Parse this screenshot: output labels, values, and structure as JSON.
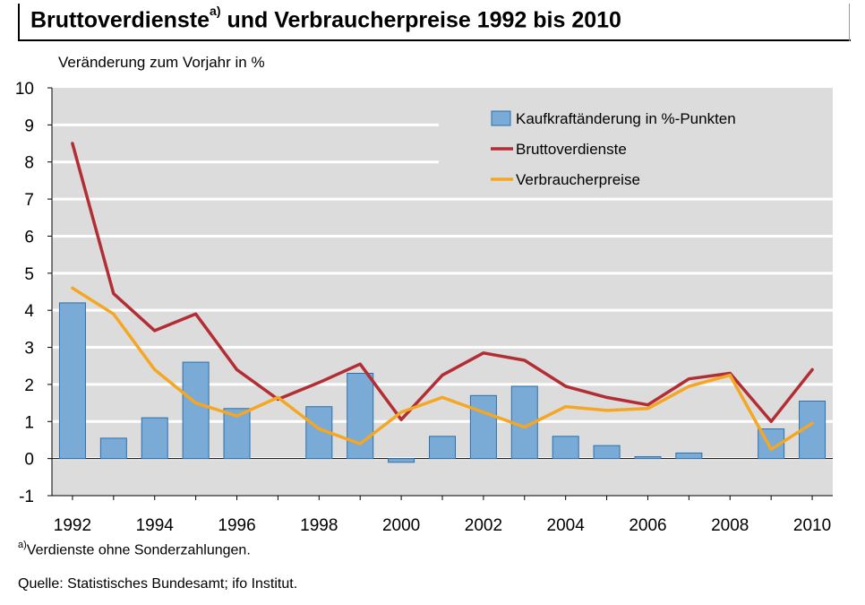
{
  "title": {
    "main": "Bruttoverdienste",
    "sup": "a)",
    "rest": " und Verbraucherpreise 1992 bis 2010"
  },
  "unit_label": "Veränderung zum Vorjahr in %",
  "footnote": {
    "marker": "a)",
    "text": "Verdienste ohne Sonderzahlungen."
  },
  "source": "Quelle: Statistisches Bundesamt; ifo Institut.",
  "colors": {
    "plot_background": "#dcdcdc",
    "gridline": "#ffffff",
    "bar_fill": "#7aabd6",
    "bar_stroke": "#2a6fad",
    "brutto": "#b32d35",
    "verbraucher": "#f5a623"
  },
  "chart_data": {
    "type": "bar",
    "title": "Bruttoverdienste a) und Verbraucherpreise 1992 bis 2010",
    "ylabel": "Veränderung zum Vorjahr in %",
    "xlabel": "",
    "ylim": [
      -1,
      10
    ],
    "yticks": [
      -1,
      0,
      1,
      2,
      3,
      4,
      5,
      6,
      7,
      8,
      9,
      10
    ],
    "grid": true,
    "legend_position": "top-right",
    "years": [
      1992,
      1993,
      1994,
      1995,
      1996,
      1997,
      1998,
      1999,
      2000,
      2001,
      2002,
      2003,
      2004,
      2005,
      2006,
      2007,
      2008,
      2009,
      2010
    ],
    "xtick_labels": [
      "1992",
      "1994",
      "1996",
      "1998",
      "2000",
      "2002",
      "2004",
      "2006",
      "2008",
      "2010"
    ],
    "series": [
      {
        "name": "Kaufkraftänderung in %-Punkten",
        "kind": "bar",
        "values": [
          4.2,
          0.55,
          1.1,
          2.6,
          1.35,
          0.0,
          1.4,
          2.3,
          -0.1,
          0.6,
          1.7,
          1.95,
          0.6,
          0.35,
          0.05,
          0.15,
          0.0,
          0.8,
          1.55
        ]
      },
      {
        "name": "Bruttoverdienste",
        "kind": "line",
        "values": [
          8.5,
          4.45,
          3.45,
          3.9,
          2.4,
          1.6,
          2.05,
          2.55,
          1.05,
          2.25,
          2.85,
          2.65,
          1.95,
          1.65,
          1.45,
          2.15,
          2.3,
          1.0,
          2.4
        ]
      },
      {
        "name": "Verbraucherpreise",
        "kind": "line",
        "values": [
          4.6,
          3.9,
          2.4,
          1.5,
          1.15,
          1.65,
          0.8,
          0.4,
          1.25,
          1.65,
          1.25,
          0.85,
          1.4,
          1.3,
          1.35,
          1.95,
          2.25,
          0.25,
          0.95
        ]
      }
    ]
  }
}
